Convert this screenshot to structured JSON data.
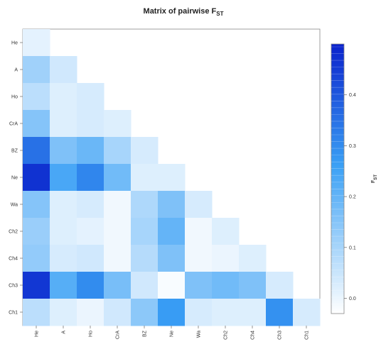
{
  "chart_data": {
    "type": "heatmap",
    "title": "Matrix of pairwise F",
    "title_subscript": "ST",
    "colorbar_label": "F",
    "colorbar_label_subscript": "ST",
    "rows": [
      "He",
      "A",
      "Ho",
      "CrA",
      "BZ",
      "Ne",
      "Wa",
      "Ch2",
      "Ch4",
      "Ch3",
      "Ch1"
    ],
    "cols": [
      "He",
      "A",
      "Ho",
      "CrA",
      "BZ",
      "Ne",
      "Wa",
      "Ch2",
      "Ch4",
      "Ch3",
      "Ch1"
    ],
    "values": [
      [
        0.01
      ],
      [
        0.11,
        0.04
      ],
      [
        0.07,
        0.02,
        0.03
      ],
      [
        0.15,
        0.02,
        0.03,
        0.02
      ],
      [
        0.35,
        0.16,
        0.19,
        0.1,
        0.03
      ],
      [
        0.47,
        0.24,
        0.31,
        0.18,
        0.02,
        0.02
      ],
      [
        0.15,
        0.02,
        0.03,
        -0.01,
        0.09,
        0.16,
        0.03
      ],
      [
        0.12,
        0.02,
        0.01,
        -0.01,
        0.1,
        0.2,
        -0.01,
        0.02
      ],
      [
        0.13,
        0.03,
        0.04,
        -0.01,
        0.08,
        0.16,
        -0.01,
        0.0,
        0.02
      ],
      [
        0.46,
        0.22,
        0.3,
        0.17,
        0.04,
        -0.02,
        0.16,
        0.18,
        0.16,
        0.03
      ],
      [
        0.07,
        0.02,
        0.0,
        0.04,
        0.14,
        0.27,
        0.03,
        0.02,
        0.02,
        0.29,
        0.03
      ]
    ],
    "colorbar_range": [
      -0.03,
      0.5
    ],
    "colorbar_ticks": [
      0.0,
      0.1,
      0.2,
      0.3,
      0.4
    ],
    "colorbar_tick_labels": [
      "0.0",
      "0.1",
      "0.2",
      "0.3",
      "0.4"
    ],
    "color_low": "#ffffff",
    "color_mid": "#3aa0f5",
    "color_high": "#0a22cc"
  }
}
